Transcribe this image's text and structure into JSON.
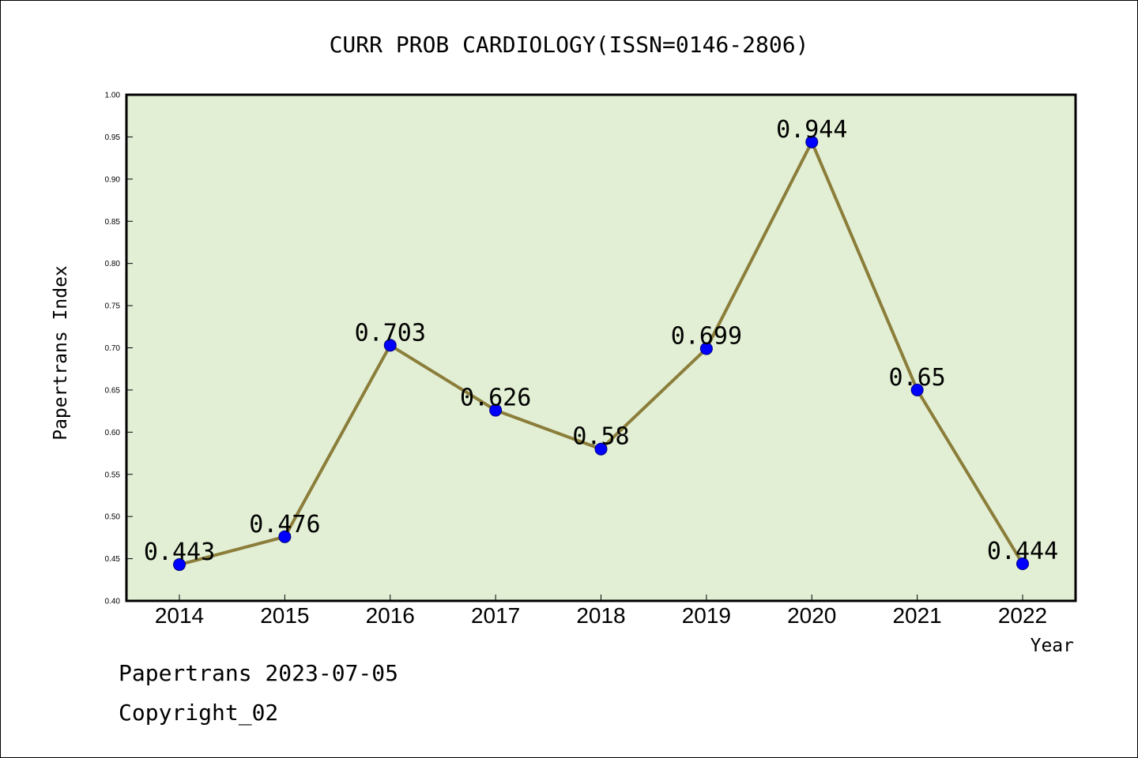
{
  "chart_data": {
    "type": "line",
    "title": "CURR PROB CARDIOLOGY(ISSN=0146-2806)",
    "xlabel": "Year",
    "ylabel": "Papertrans Index",
    "categories": [
      "2014",
      "2015",
      "2016",
      "2017",
      "2018",
      "2019",
      "2020",
      "2021",
      "2022"
    ],
    "series": [
      {
        "values": [
          0.443,
          0.476,
          0.703,
          0.626,
          0.58,
          0.699,
          0.944,
          0.65,
          0.444
        ],
        "data_labels": [
          "0.443",
          "0.476",
          "0.703",
          "0.626",
          "0.58",
          "0.699",
          "0.944",
          "0.65",
          "0.444"
        ]
      }
    ],
    "ylim": [
      0.4,
      1.0
    ],
    "yticks": [
      "0.40",
      "0.45",
      "0.50",
      "0.55",
      "0.60",
      "0.65",
      "0.70",
      "0.75",
      "0.80",
      "0.85",
      "0.90",
      "0.95",
      "1.00"
    ],
    "grid": false,
    "colors": {
      "plot_background": "#e2efd4",
      "line": "#8b7d3a",
      "marker": "#0000ff",
      "axis": "#000000"
    }
  },
  "footer": {
    "date_line": "Papertrans 2023-07-05",
    "copyright_line": "Copyright_02"
  }
}
